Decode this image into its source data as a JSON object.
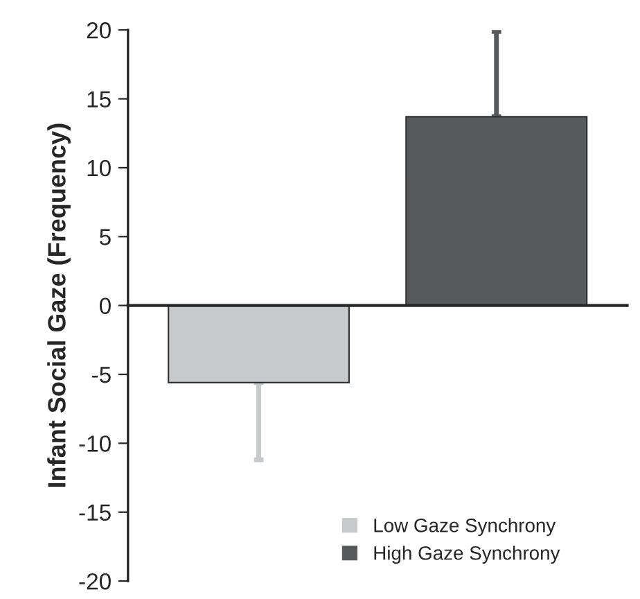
{
  "chart_data": {
    "type": "bar",
    "ylabel": "Infant Social Gaze (Frequency)",
    "categories": [
      null,
      null
    ],
    "series": [
      {
        "name": "Low Gaze Synchrony",
        "color": "#c8c9cb",
        "values": [
          -5.6,
          null
        ],
        "errors": [
          [
            -11.2,
            -5.6
          ],
          null
        ]
      },
      {
        "name": "High Gaze Synchrony",
        "color": "#58595b",
        "values": [
          null,
          13.7
        ],
        "errors": [
          null,
          [
            13.7,
            19.9
          ]
        ]
      }
    ],
    "ylim": [
      -20,
      20
    ],
    "yticks": [
      -20,
      -15,
      -10,
      -5,
      0,
      5,
      10,
      15,
      20
    ],
    "legend": "bottom right"
  }
}
